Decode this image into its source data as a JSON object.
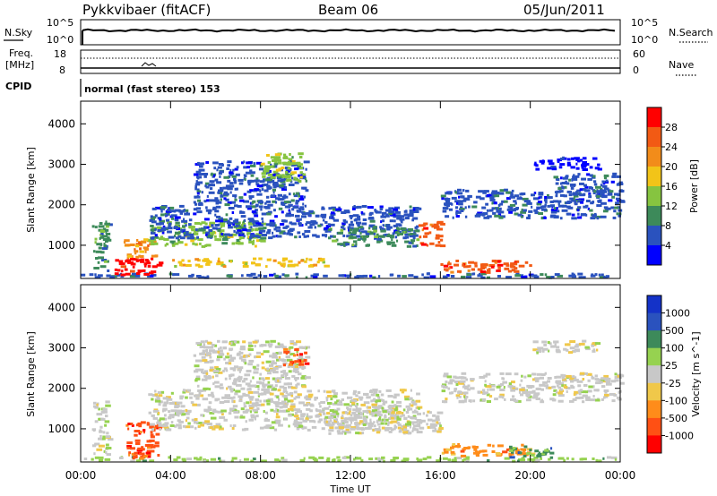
{
  "header": {
    "title": "Pykkvibaer (fitACF)",
    "beam": "Beam 06",
    "date": "05/Jun/2011"
  },
  "top_panels": {
    "nsky_label": "N.Sky",
    "nsky_ticks": [
      "10^5",
      "10^0"
    ],
    "nsearch_label": "N.Search",
    "nsearch_ticks": [
      "10^5",
      "10^0"
    ],
    "freq_label": "Freq.",
    "freq_unit": "[MHz]",
    "freq_ticks": [
      "18",
      "8"
    ],
    "nave_label": "Nave",
    "nave_ticks": [
      "60",
      "0"
    ],
    "cpid_label": "CPID",
    "cpid_value": "normal (fast stereo) 153"
  },
  "colors": {
    "power": [
      "#0000ff",
      "#2a52be",
      "#3d8a5a",
      "#86c440",
      "#f2c418",
      "#f28c1a",
      "#f25a14",
      "#ff0000"
    ],
    "velocity": [
      "#ff0000",
      "#ff5014",
      "#ff8c1a",
      "#f0c84a",
      "#c8c8c8",
      "#96d250",
      "#3d8a5a",
      "#2a52be",
      "#1432c8"
    ]
  },
  "chart_data": [
    {
      "type": "heatmap",
      "name": "power-panel",
      "ylabel": "Slant Range [km]",
      "ylim": [
        180,
        4560
      ],
      "y_ticks": [
        "1000",
        "2000",
        "3000",
        "4000"
      ],
      "xlim": [
        0,
        24
      ],
      "colorbar_label": "Power [dB]",
      "colorbar_ticks": [
        "4",
        "8",
        "12",
        "16",
        "20",
        "24",
        "28"
      ],
      "colorbar_range": [
        0,
        32
      ],
      "regions": [
        {
          "t": [
            0,
            24
          ],
          "r": [
            230,
            330
          ],
          "level": 1
        },
        {
          "t": [
            0.5,
            1.2
          ],
          "r": [
            400,
            1700
          ],
          "level": 2
        },
        {
          "t": [
            1.5,
            3.5
          ],
          "r": [
            300,
            700
          ],
          "level": 7
        },
        {
          "t": [
            1.8,
            3.3
          ],
          "r": [
            700,
            1200
          ],
          "level": 5
        },
        {
          "t": [
            3,
            8
          ],
          "r": [
            1000,
            1600
          ],
          "level": 3
        },
        {
          "t": [
            4,
            11
          ],
          "r": [
            500,
            700
          ],
          "level": 4
        },
        {
          "t": [
            3,
            15
          ],
          "r": [
            1200,
            2000
          ],
          "level": 1
        },
        {
          "t": [
            5,
            10
          ],
          "r": [
            2000,
            3100
          ],
          "level": 1
        },
        {
          "t": [
            8,
            10
          ],
          "r": [
            2600,
            3300
          ],
          "level": 3
        },
        {
          "t": [
            11,
            15
          ],
          "r": [
            1000,
            1500
          ],
          "level": 2
        },
        {
          "t": [
            15,
            16
          ],
          "r": [
            1000,
            1600
          ],
          "level": 6
        },
        {
          "t": [
            16,
            20
          ],
          "r": [
            350,
            650
          ],
          "level": 6
        },
        {
          "t": [
            16,
            24
          ],
          "r": [
            1700,
            2400
          ],
          "level": 1
        },
        {
          "t": [
            21,
            24
          ],
          "r": [
            2200,
            2800
          ],
          "level": 1
        },
        {
          "t": [
            20,
            23
          ],
          "r": [
            2900,
            3200
          ],
          "level": 0
        }
      ]
    },
    {
      "type": "heatmap",
      "name": "velocity-panel",
      "ylabel": "Slant Range [km]",
      "ylim": [
        180,
        4560
      ],
      "y_ticks": [
        "1000",
        "2000",
        "3000",
        "4000"
      ],
      "xlim": [
        0,
        24
      ],
      "xlabel": "Time UT",
      "x_ticks": [
        "00:00",
        "04:00",
        "08:00",
        "12:00",
        "16:00",
        "20:00",
        "00:00"
      ],
      "colorbar_label": "Velocity [m s^-1]",
      "colorbar_ticks": [
        "1000",
        "500",
        "100",
        "25",
        "-25",
        "-100",
        "-500",
        "-1000"
      ],
      "regions": [
        {
          "t": [
            0,
            24
          ],
          "r": [
            230,
            330
          ],
          "level": 5
        },
        {
          "t": [
            0.5,
            1.2
          ],
          "r": [
            400,
            1700
          ],
          "level": 4
        },
        {
          "t": [
            2,
            3.5
          ],
          "r": [
            300,
            1200
          ],
          "level": 1
        },
        {
          "t": [
            3,
            15
          ],
          "r": [
            1000,
            2000
          ],
          "level": 4
        },
        {
          "t": [
            5,
            10
          ],
          "r": [
            2000,
            3200
          ],
          "level": 4
        },
        {
          "t": [
            9,
            10
          ],
          "r": [
            2600,
            3000
          ],
          "level": 1
        },
        {
          "t": [
            11,
            16
          ],
          "r": [
            900,
            1500
          ],
          "level": 4
        },
        {
          "t": [
            16,
            20
          ],
          "r": [
            350,
            650
          ],
          "level": 2
        },
        {
          "t": [
            16,
            24
          ],
          "r": [
            1700,
            2400
          ],
          "level": 4
        },
        {
          "t": [
            19,
            21
          ],
          "r": [
            300,
            600
          ],
          "level": 6
        },
        {
          "t": [
            20,
            23
          ],
          "r": [
            2900,
            3200
          ],
          "level": 4
        }
      ]
    }
  ]
}
